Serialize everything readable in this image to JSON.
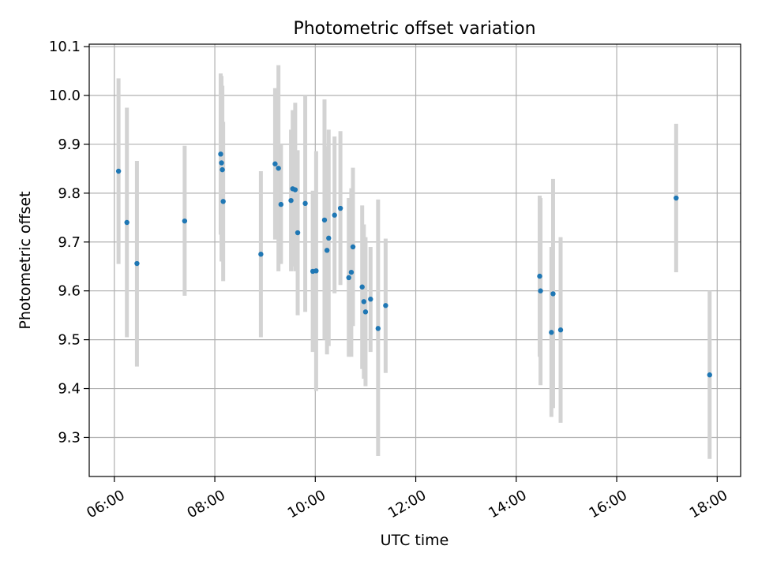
{
  "chart_data": {
    "type": "scatter",
    "title": "Photometric offset variation",
    "xlabel": "UTC time",
    "ylabel": "Photometric offset",
    "x_tick_labels": [
      "06:00",
      "08:00",
      "10:00",
      "12:00",
      "14:00",
      "16:00",
      "18:00"
    ],
    "x_tick_values": [
      "06:00",
      "08:00",
      "10:00",
      "12:00",
      "14:00",
      "16:00",
      "18:00"
    ],
    "y_tick_labels": [
      "9.3",
      "9.4",
      "9.5",
      "9.6",
      "9.7",
      "9.8",
      "9.9",
      "10.0",
      "10.1"
    ],
    "y_tick_values": [
      9.3,
      9.4,
      9.5,
      9.6,
      9.7,
      9.8,
      9.9,
      10.0,
      10.1
    ],
    "xlim": [
      "05:30",
      "18:28"
    ],
    "ylim": [
      9.22,
      10.105
    ],
    "grid": true,
    "colors": {
      "marker": "#1f77b4",
      "errorbar": "#d3d3d3",
      "grid": "#b0b0b0"
    },
    "points": [
      {
        "x": "06:05",
        "y": 9.845,
        "err_low": 9.655,
        "err_high": 10.035
      },
      {
        "x": "06:15",
        "y": 9.74,
        "err_low": 9.505,
        "err_high": 9.975
      },
      {
        "x": "06:27",
        "y": 9.656,
        "err_low": 9.445,
        "err_high": 9.866
      },
      {
        "x": "07:24",
        "y": 9.743,
        "err_low": 9.59,
        "err_high": 9.897
      },
      {
        "x": "08:07",
        "y": 9.88,
        "err_low": 9.715,
        "err_high": 10.045
      },
      {
        "x": "08:08",
        "y": 9.862,
        "err_low": 9.66,
        "err_high": 10.04
      },
      {
        "x": "08:09",
        "y": 9.848,
        "err_low": 9.68,
        "err_high": 10.02
      },
      {
        "x": "08:10",
        "y": 9.783,
        "err_low": 9.62,
        "err_high": 9.946
      },
      {
        "x": "08:55",
        "y": 9.675,
        "err_low": 9.505,
        "err_high": 9.845
      },
      {
        "x": "09:12",
        "y": 9.86,
        "err_low": 9.705,
        "err_high": 10.015
      },
      {
        "x": "09:16",
        "y": 9.851,
        "err_low": 9.64,
        "err_high": 10.062
      },
      {
        "x": "09:19",
        "y": 9.777,
        "err_low": 9.655,
        "err_high": 9.9
      },
      {
        "x": "09:31",
        "y": 9.785,
        "err_low": 9.64,
        "err_high": 9.93
      },
      {
        "x": "09:33",
        "y": 9.809,
        "err_low": 9.65,
        "err_high": 9.97
      },
      {
        "x": "09:36",
        "y": 9.807,
        "err_low": 9.64,
        "err_high": 9.985
      },
      {
        "x": "09:39",
        "y": 9.719,
        "err_low": 9.55,
        "err_high": 9.888
      },
      {
        "x": "09:48",
        "y": 9.779,
        "err_low": 9.557,
        "err_high": 10.0
      },
      {
        "x": "09:57",
        "y": 9.64,
        "err_low": 9.475,
        "err_high": 9.805
      },
      {
        "x": "10:01",
        "y": 9.641,
        "err_low": 9.395,
        "err_high": 9.886
      },
      {
        "x": "10:11",
        "y": 9.745,
        "err_low": 9.5,
        "err_high": 9.992
      },
      {
        "x": "10:14",
        "y": 9.683,
        "err_low": 9.47,
        "err_high": 9.896
      },
      {
        "x": "10:16",
        "y": 9.708,
        "err_low": 9.487,
        "err_high": 9.93
      },
      {
        "x": "10:23",
        "y": 9.755,
        "err_low": 9.595,
        "err_high": 9.916
      },
      {
        "x": "10:30",
        "y": 9.769,
        "err_low": 9.612,
        "err_high": 9.927
      },
      {
        "x": "10:40",
        "y": 9.627,
        "err_low": 9.465,
        "err_high": 9.79
      },
      {
        "x": "10:43",
        "y": 9.638,
        "err_low": 9.465,
        "err_high": 9.81
      },
      {
        "x": "10:45",
        "y": 9.69,
        "err_low": 9.528,
        "err_high": 9.852
      },
      {
        "x": "10:56",
        "y": 9.608,
        "err_low": 9.44,
        "err_high": 9.775
      },
      {
        "x": "10:58",
        "y": 9.578,
        "err_low": 9.42,
        "err_high": 9.736
      },
      {
        "x": "11:00",
        "y": 9.557,
        "err_low": 9.405,
        "err_high": 9.71
      },
      {
        "x": "11:06",
        "y": 9.583,
        "err_low": 9.475,
        "err_high": 9.69
      },
      {
        "x": "11:15",
        "y": 9.523,
        "err_low": 9.262,
        "err_high": 9.787
      },
      {
        "x": "11:24",
        "y": 9.57,
        "err_low": 9.432,
        "err_high": 9.707
      },
      {
        "x": "14:28",
        "y": 9.63,
        "err_low": 9.465,
        "err_high": 9.795
      },
      {
        "x": "14:29",
        "y": 9.6,
        "err_low": 9.407,
        "err_high": 9.79
      },
      {
        "x": "14:42",
        "y": 9.515,
        "err_low": 9.342,
        "err_high": 9.69
      },
      {
        "x": "14:44",
        "y": 9.594,
        "err_low": 9.36,
        "err_high": 9.829
      },
      {
        "x": "14:53",
        "y": 9.52,
        "err_low": 9.33,
        "err_high": 9.71
      },
      {
        "x": "17:11",
        "y": 9.79,
        "err_low": 9.638,
        "err_high": 9.942
      },
      {
        "x": "17:51",
        "y": 9.428,
        "err_low": 9.256,
        "err_high": 9.6
      }
    ]
  }
}
